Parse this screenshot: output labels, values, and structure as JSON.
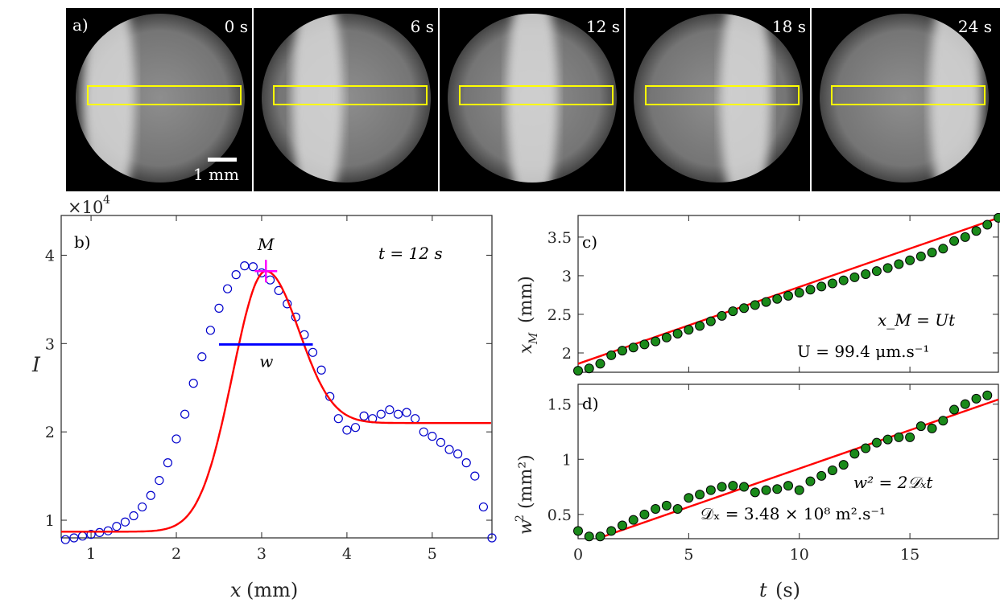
{
  "figure": {
    "frames": {
      "panel_label": "a)",
      "time_labels": [
        "0 s",
        "6 s",
        "12 s",
        "18 s",
        "24 s"
      ],
      "scale_bar_label": "1 mm",
      "front_color": "#dadada",
      "roi_color": "#ffff00"
    },
    "colors": {
      "fit": "#ff0000",
      "data_b": "#0000cc",
      "marker_M": "#ff00ff",
      "width_w": "#0000ff",
      "green_fill": "#1a8a1a"
    }
  },
  "chart_data": [
    {
      "type": "scatter",
      "panel_label": "b)",
      "annotation": "t = 12 s",
      "max_label": "M",
      "width_label": "w",
      "exponent_label": "×10",
      "exponent_power": "4",
      "xlabel_symbol": "x",
      "xlabel_unit": "(mm)",
      "ylabel": "I",
      "xlim": [
        0.65,
        5.7
      ],
      "ylim": [
        0.8,
        4.45
      ],
      "xticks": [
        1,
        2,
        3,
        4,
        5
      ],
      "yticks": [
        1,
        2,
        3,
        4
      ],
      "max_point": {
        "x": 3.05,
        "y": 3.82
      },
      "width_segment": {
        "x": [
          2.5,
          3.6
        ],
        "y": 2.99
      },
      "fit_baseline_left": 0.87,
      "fit_baseline_right": 2.1,
      "data": {
        "x": [
          0.7,
          0.8,
          0.9,
          1.0,
          1.1,
          1.2,
          1.3,
          1.4,
          1.5,
          1.6,
          1.7,
          1.8,
          1.9,
          2.0,
          2.1,
          2.2,
          2.3,
          2.4,
          2.5,
          2.6,
          2.7,
          2.8,
          2.9,
          3.0,
          3.1,
          3.2,
          3.3,
          3.4,
          3.5,
          3.6,
          3.7,
          3.8,
          3.9,
          4.0,
          4.1,
          4.2,
          4.3,
          4.4,
          4.5,
          4.6,
          4.7,
          4.8,
          4.9,
          5.0,
          5.1,
          5.2,
          5.3,
          5.4,
          5.5,
          5.6,
          5.7
        ],
        "y": [
          0.78,
          0.8,
          0.82,
          0.84,
          0.86,
          0.88,
          0.93,
          0.98,
          1.05,
          1.15,
          1.28,
          1.45,
          1.65,
          1.92,
          2.2,
          2.55,
          2.85,
          3.15,
          3.4,
          3.62,
          3.78,
          3.88,
          3.87,
          3.8,
          3.72,
          3.6,
          3.45,
          3.3,
          3.1,
          2.9,
          2.7,
          2.4,
          2.15,
          2.02,
          2.05,
          2.18,
          2.15,
          2.2,
          2.25,
          2.2,
          2.22,
          2.15,
          2.0,
          1.95,
          1.88,
          1.8,
          1.75,
          1.65,
          1.5,
          1.15,
          0.8
        ]
      }
    },
    {
      "type": "scatter",
      "panel_label": "c)",
      "equation_1": "x_M = Ut",
      "equation_2": "U = 99.4 μm.s⁻¹",
      "ylabel_symbol": "x",
      "ylabel_sub": "M",
      "ylabel_unit": "(mm)",
      "xlim": [
        0,
        19
      ],
      "ylim": [
        1.75,
        3.78
      ],
      "yticks": [
        2,
        2.5,
        3,
        3.5
      ],
      "fit": {
        "slope": 0.0994,
        "intercept": 1.86
      },
      "data": {
        "x": [
          0,
          0.5,
          1,
          1.5,
          2,
          2.5,
          3,
          3.5,
          4,
          4.5,
          5,
          5.5,
          6,
          6.5,
          7,
          7.5,
          8,
          8.5,
          9,
          9.5,
          10,
          10.5,
          11,
          11.5,
          12,
          12.5,
          13,
          13.5,
          14,
          14.5,
          15,
          15.5,
          16,
          16.5,
          17,
          17.5,
          18,
          18.5,
          19
        ],
        "y": [
          1.77,
          1.8,
          1.86,
          1.97,
          2.03,
          2.07,
          2.11,
          2.15,
          2.2,
          2.25,
          2.3,
          2.35,
          2.41,
          2.48,
          2.54,
          2.58,
          2.62,
          2.66,
          2.7,
          2.74,
          2.78,
          2.82,
          2.86,
          2.9,
          2.94,
          2.98,
          3.02,
          3.06,
          3.1,
          3.15,
          3.2,
          3.25,
          3.3,
          3.35,
          3.45,
          3.5,
          3.58,
          3.66,
          3.75
        ]
      }
    },
    {
      "type": "scatter",
      "panel_label": "d)",
      "equation_1": "w² = 2𝒟ₓt",
      "equation_2": "𝒟ₓ = 3.48 × 10⁸ m².s⁻¹",
      "ylabel_symbol": "w",
      "ylabel_sup": "2",
      "ylabel_unit": "(mm²)",
      "xlabel_symbol": "t",
      "xlabel_unit": "(s)",
      "xlim": [
        0,
        19
      ],
      "ylim": [
        0.28,
        1.68
      ],
      "xticks": [
        0,
        5,
        10,
        15
      ],
      "yticks": [
        0.5,
        1,
        1.5
      ],
      "fit": {
        "slope": 0.0696,
        "intercept": 0.22
      },
      "data": {
        "x": [
          0,
          0.5,
          1,
          1.5,
          2,
          2.5,
          3,
          3.5,
          4,
          4.5,
          5,
          5.5,
          6,
          6.5,
          7,
          7.5,
          8,
          8.5,
          9,
          9.5,
          10,
          10.5,
          11,
          11.5,
          12,
          12.5,
          13,
          13.5,
          14,
          14.5,
          15,
          15.5,
          16,
          16.5,
          17,
          17.5,
          18,
          18.5
        ],
        "y": [
          0.35,
          0.3,
          0.3,
          0.35,
          0.4,
          0.45,
          0.5,
          0.55,
          0.58,
          0.55,
          0.65,
          0.68,
          0.72,
          0.75,
          0.76,
          0.75,
          0.7,
          0.72,
          0.73,
          0.76,
          0.72,
          0.8,
          0.85,
          0.9,
          0.95,
          1.05,
          1.1,
          1.15,
          1.18,
          1.2,
          1.2,
          1.3,
          1.28,
          1.35,
          1.45,
          1.5,
          1.55,
          1.58
        ]
      }
    }
  ]
}
